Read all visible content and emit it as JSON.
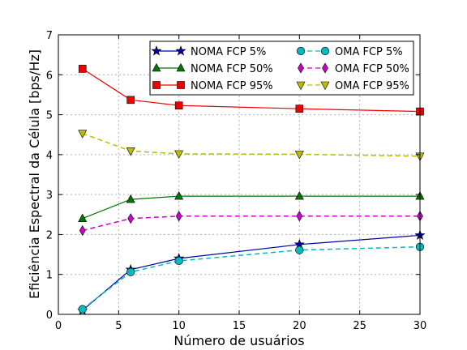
{
  "chart_data": {
    "type": "line",
    "xlabel": "Número de usuários",
    "ylabel": "Eficiência Espectral da Célula [bps/Hz]",
    "xlim": [
      0,
      30
    ],
    "ylim": [
      0,
      7
    ],
    "xticks": [
      0,
      5,
      10,
      15,
      20,
      25,
      30
    ],
    "yticks": [
      0,
      1,
      2,
      3,
      4,
      5,
      6,
      7
    ],
    "grid": true,
    "legend_position": "top-right",
    "x": [
      2,
      6,
      10,
      20,
      30
    ],
    "series": [
      {
        "name": "NOMA FCP 5%",
        "values": [
          0.1,
          1.12,
          1.4,
          1.75,
          1.98
        ],
        "color": "#0000aa",
        "marker": "star",
        "dash": "solid"
      },
      {
        "name": "NOMA FCP 50%",
        "values": [
          2.4,
          2.88,
          2.96,
          2.96,
          2.96
        ],
        "color": "#007700",
        "marker": "triangle",
        "dash": "solid"
      },
      {
        "name": "NOMA FCP 95%",
        "values": [
          6.15,
          5.37,
          5.23,
          5.15,
          5.08
        ],
        "color": "#ee0000",
        "marker": "square",
        "dash": "solid"
      },
      {
        "name": "OMA FCP 5%",
        "values": [
          0.13,
          1.06,
          1.34,
          1.61,
          1.69
        ],
        "color": "#00bbbb",
        "marker": "circle",
        "dash": "dashed"
      },
      {
        "name": "OMA FCP 50%",
        "values": [
          2.1,
          2.4,
          2.46,
          2.46,
          2.46
        ],
        "color": "#cc00cc",
        "marker": "thin-diamond",
        "dash": "dashed"
      },
      {
        "name": "OMA FCP 95%",
        "values": [
          4.53,
          4.09,
          4.02,
          4.01,
          3.96
        ],
        "color": "#bbbb00",
        "marker": "triangle-down",
        "dash": "dashed"
      }
    ]
  }
}
